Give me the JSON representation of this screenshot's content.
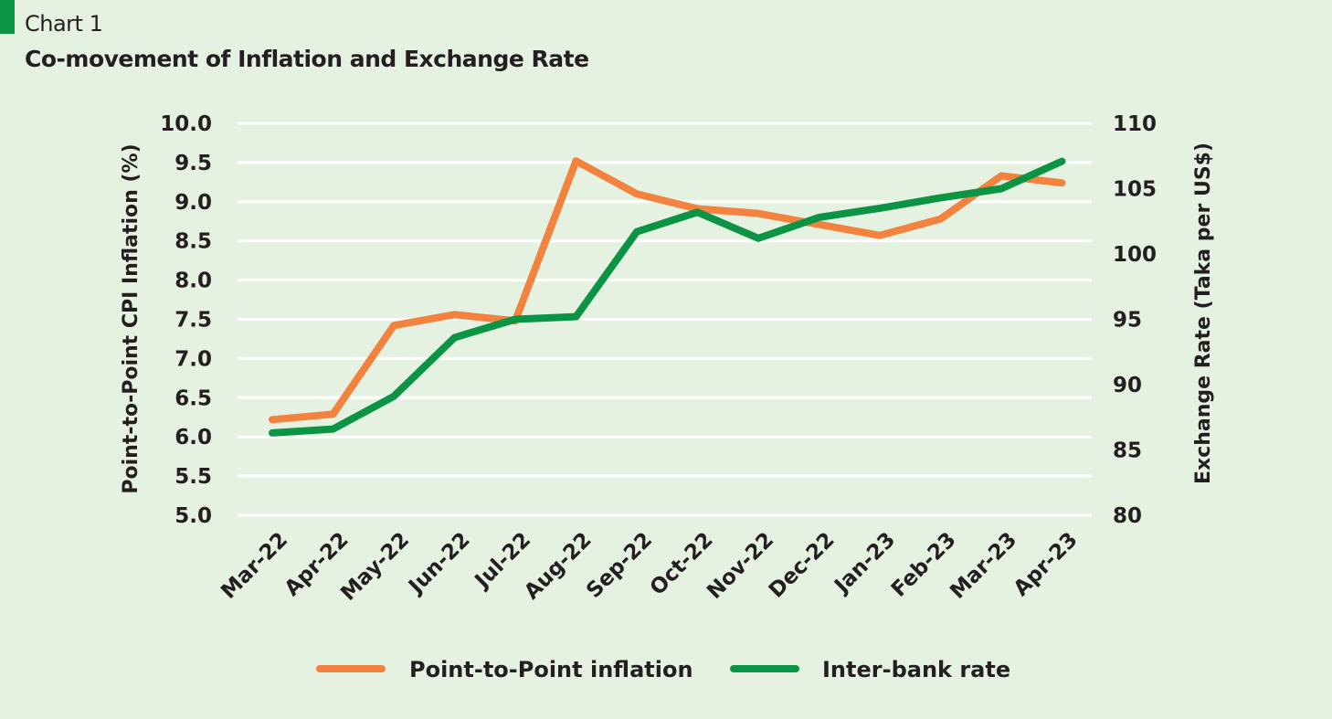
{
  "header": {
    "label": "Chart 1",
    "title": "Co-movement of Inflation and Exchange Rate"
  },
  "chart_data": {
    "type": "line",
    "title": "Co-movement of Inflation and Exchange Rate",
    "categories": [
      "Mar-22",
      "Apr-22",
      "May-22",
      "Jun-22",
      "Jul-22",
      "Aug-22",
      "Sep-22",
      "Oct-22",
      "Nov-22",
      "Dec-22",
      "Jan-23",
      "Feb-23",
      "Mar-23",
      "Apr-23"
    ],
    "ylabel": "Point-to-Point CPI Inflation (%)",
    "y2label": "Exchange Rate (Taka per US$)",
    "ylim": [
      5.0,
      10.0
    ],
    "y2lim": [
      80,
      110
    ],
    "yticks": [
      "5.0",
      "5.5",
      "6.0",
      "6.5",
      "7.0",
      "7.5",
      "8.0",
      "8.5",
      "9.0",
      "9.5",
      "10.0"
    ],
    "y2ticks": [
      "80",
      "85",
      "90",
      "95",
      "100",
      "105",
      "110"
    ],
    "grid": true,
    "legend": "bottom",
    "series": [
      {
        "name": "Point-to-Point inflation",
        "axis": "left",
        "color": "#f4823f",
        "values": [
          6.22,
          6.29,
          7.42,
          7.56,
          7.48,
          9.52,
          9.1,
          8.91,
          8.85,
          8.71,
          8.57,
          8.78,
          9.33,
          9.24
        ]
      },
      {
        "name": "Inter-bank rate",
        "axis": "right",
        "color": "#0b9444",
        "values": [
          86.3,
          86.6,
          89.1,
          93.6,
          95.0,
          95.2,
          101.7,
          103.2,
          101.2,
          102.8,
          103.5,
          104.3,
          105.0,
          107.1
        ]
      }
    ]
  }
}
